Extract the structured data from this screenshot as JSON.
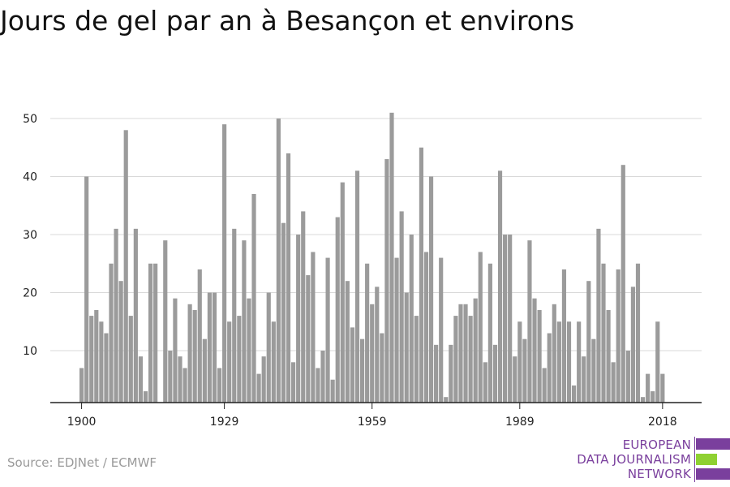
{
  "title": "Jours de gel par an à Besançon et environs",
  "source": "Source: EDJNet / ECMWF",
  "logo": {
    "line1": "EUROPEAN",
    "line2": "DATA JOURNALISM",
    "line3": "NETWORK",
    "colors": [
      "#7a3f9d",
      "#8fd132",
      "#7a3f9d"
    ]
  },
  "chart_data": {
    "type": "bar",
    "title": "Jours de gel par an à Besançon et environs",
    "xlabel": "",
    "ylabel": "",
    "x_start": 1900,
    "x_end": 2018,
    "xticks": [
      1900,
      1929,
      1959,
      1989,
      2018
    ],
    "yticks": [
      10,
      20,
      30,
      40,
      50
    ],
    "ylim": [
      1,
      52
    ],
    "grid": true,
    "bar_color": "#9b9b9b",
    "values": [
      7,
      40,
      16,
      17,
      15,
      13,
      25,
      31,
      22,
      48,
      16,
      31,
      9,
      3,
      25,
      25,
      0,
      29,
      10,
      19,
      9,
      7,
      18,
      17,
      24,
      12,
      20,
      20,
      7,
      49,
      15,
      31,
      16,
      29,
      19,
      37,
      6,
      9,
      20,
      15,
      50,
      32,
      44,
      8,
      30,
      34,
      23,
      27,
      7,
      10,
      26,
      5,
      33,
      39,
      22,
      14,
      41,
      12,
      25,
      18,
      21,
      13,
      43,
      51,
      26,
      34,
      20,
      30,
      16,
      45,
      27,
      40,
      11,
      26,
      2,
      11,
      16,
      18,
      18,
      16,
      19,
      27,
      8,
      25,
      11,
      41,
      30,
      30,
      9,
      15,
      12,
      29,
      19,
      17,
      7,
      13,
      18,
      15,
      24,
      15,
      4,
      15,
      9,
      22,
      12,
      31,
      25,
      17,
      8,
      24,
      42,
      10,
      21,
      25,
      2,
      6,
      3,
      15,
      6
    ]
  }
}
